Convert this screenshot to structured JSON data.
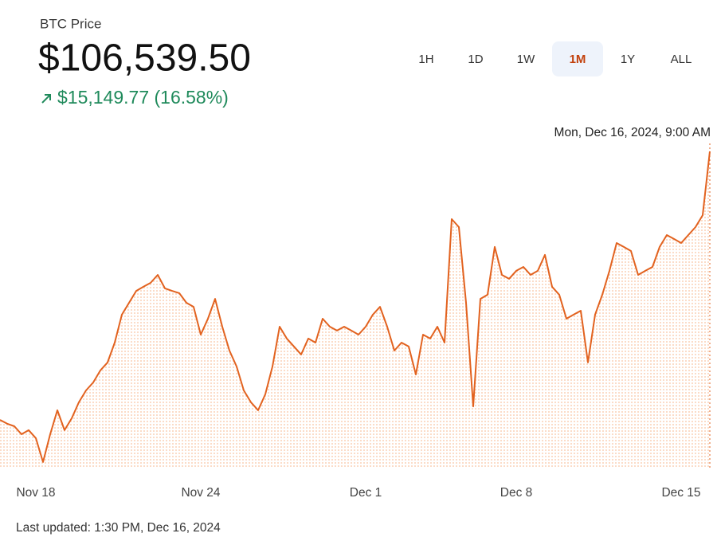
{
  "header": {
    "title": "BTC Price",
    "price": "$106,539.50",
    "change": "$15,149.77 (16.58%)"
  },
  "timeframes": [
    "1H",
    "1D",
    "1W",
    "1M",
    "1Y",
    "ALL"
  ],
  "active_timeframe": "1M",
  "last_updated": "Last updated: 1:30 PM, Dec 16, 2024",
  "chart_data": {
    "type": "line",
    "hover_label": "Mon, Dec 16, 2024, 9:00 AM",
    "color": "#e2621f",
    "categories": [
      null,
      null,
      null,
      null,
      null,
      "Nov 18",
      null,
      null,
      null,
      null,
      null,
      null,
      null,
      null,
      null,
      null,
      null,
      null,
      null,
      null,
      null,
      null,
      null,
      null,
      null,
      null,
      null,
      null,
      "Nov 24",
      null,
      null,
      null,
      null,
      null,
      null,
      null,
      null,
      null,
      null,
      null,
      null,
      null,
      null,
      null,
      null,
      null,
      null,
      null,
      null,
      null,
      null,
      "Dec 1",
      null,
      null,
      null,
      null,
      null,
      null,
      null,
      null,
      null,
      null,
      null,
      null,
      null,
      null,
      null,
      null,
      null,
      null,
      null,
      null,
      "Dec 8",
      null,
      null,
      null,
      null,
      null,
      null,
      null,
      null,
      null,
      null,
      null,
      null,
      null,
      null,
      null,
      null,
      null,
      null,
      null,
      null,
      null,
      null,
      "Dec 15",
      null,
      null,
      null,
      null
    ],
    "values": [
      91390,
      91170,
      91030,
      90580,
      90810,
      90360,
      89010,
      90580,
      91930,
      90810,
      91480,
      92380,
      93050,
      93500,
      94180,
      94630,
      95750,
      97330,
      98000,
      98670,
      98900,
      99120,
      99570,
      98810,
      98670,
      98540,
      98000,
      97770,
      96200,
      97100,
      98220,
      96650,
      95300,
      94400,
      93050,
      92380,
      91930,
      92830,
      94400,
      96650,
      95980,
      95530,
      95080,
      95980,
      95750,
      97100,
      96650,
      96430,
      96650,
      96430,
      96200,
      96650,
      97330,
      97770,
      96650,
      95300,
      95750,
      95530,
      93950,
      96200,
      95980,
      96650,
      95750,
      102720,
      102270,
      98000,
      92150,
      98220,
      98450,
      101150,
      99570,
      99350,
      99800,
      100020,
      99570,
      99800,
      100700,
      98900,
      98450,
      97100,
      97330,
      97550,
      94630,
      97330,
      98450,
      99800,
      101370,
      101150,
      100920,
      99570,
      99800,
      100020,
      101150,
      101820,
      101600,
      101370,
      101820,
      102270,
      102940,
      106539.5
    ],
    "ylim": [
      88690,
      108340
    ]
  }
}
